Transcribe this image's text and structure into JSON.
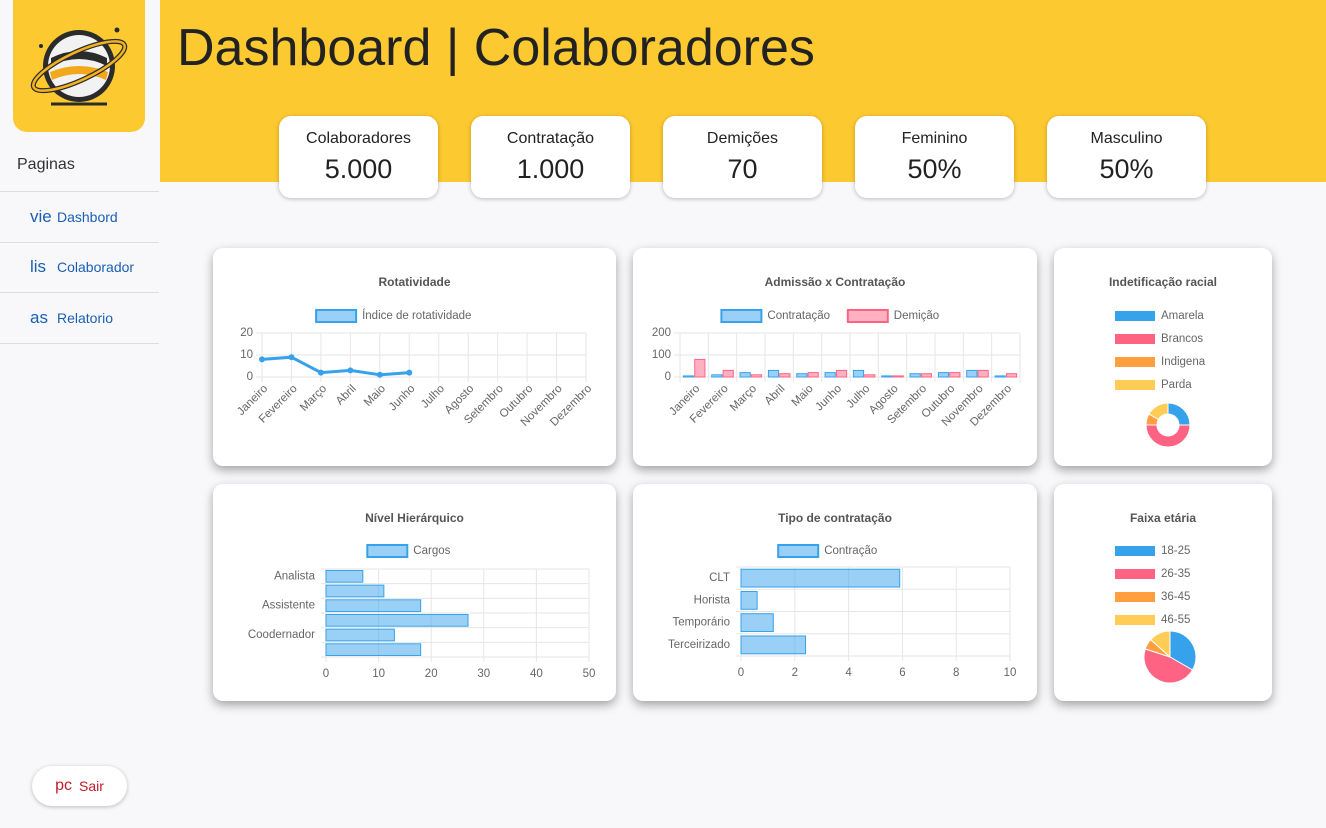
{
  "sidebar": {
    "section": "Paginas",
    "items": [
      {
        "icon": "vie",
        "label": "Dashbord"
      },
      {
        "icon": "lis",
        "label": "Colaborador"
      },
      {
        "icon": "as",
        "label": "Relatorio"
      }
    ],
    "logout": {
      "icon": "pc",
      "label": "Sair"
    }
  },
  "header": {
    "title": "Dashboard | Colaboradores"
  },
  "kpis": [
    {
      "label": "Colaboradores",
      "value": "5.000"
    },
    {
      "label": "Contratação",
      "value": "1.000"
    },
    {
      "label": "Demições",
      "value": "70"
    },
    {
      "label": "Feminino",
      "value": "50%"
    },
    {
      "label": "Masculino",
      "value": "50%"
    }
  ],
  "chart_data": [
    {
      "type": "line",
      "title": "Rotatividade",
      "categories": [
        "Janeiro",
        "Fevereiro",
        "Março",
        "Abril",
        "Maio",
        "Junho",
        "Julho",
        "Agosto",
        "Setembro",
        "Outubro",
        "Novembro",
        "Dezembro"
      ],
      "series": [
        {
          "name": "Índice de rotatividade",
          "color": "#36a2eb",
          "values": [
            8,
            9,
            2,
            3,
            1,
            2,
            null,
            null,
            null,
            null,
            null,
            null
          ]
        }
      ],
      "ylim": [
        0,
        20
      ],
      "yticks": [
        0,
        10,
        20
      ],
      "grid": true
    },
    {
      "type": "bar",
      "title": "Admissão x Contratação",
      "categories": [
        "Janeiro",
        "Fevereiro",
        "Março",
        "Abril",
        "Maio",
        "Junho",
        "Julho",
        "Agosto",
        "Setembro",
        "Outubro",
        "Novembro",
        "Dezembro"
      ],
      "series": [
        {
          "name": "Contratação",
          "color": "#36a2eb",
          "values": [
            5,
            10,
            20,
            30,
            15,
            20,
            30,
            5,
            15,
            20,
            30,
            5
          ]
        },
        {
          "name": "Demição",
          "color": "#ff6384",
          "values": [
            80,
            30,
            10,
            15,
            20,
            30,
            10,
            5,
            15,
            20,
            30,
            15
          ]
        }
      ],
      "ylim": [
        0,
        200
      ],
      "yticks": [
        0,
        100,
        200
      ],
      "grid": true
    },
    {
      "type": "doughnut",
      "title": "Indetificação racial",
      "categories": [
        "Amarela",
        "Brancos",
        "Indigena",
        "Parda"
      ],
      "values": [
        15,
        30,
        5,
        10
      ],
      "colors": [
        "#36a2eb",
        "#ff6384",
        "#ff9f40",
        "#ffcd56"
      ]
    },
    {
      "type": "hbar",
      "title": "Nível Hierárquico",
      "categories": [
        "Analista",
        null,
        "Assistente",
        null,
        "Coodernador",
        null
      ],
      "series": [
        {
          "name": "Cargos",
          "color": "#36a2eb",
          "values": [
            7,
            11,
            18,
            27,
            13,
            18
          ]
        }
      ],
      "xlim": [
        0,
        50
      ],
      "xticks": [
        0,
        10,
        20,
        30,
        40,
        50
      ],
      "grid": true
    },
    {
      "type": "hbar",
      "title": "Tipo de contratação",
      "categories": [
        "CLT",
        "Horista",
        "Temporário",
        "Terceirizado"
      ],
      "series": [
        {
          "name": "Contração",
          "color": "#36a2eb",
          "values": [
            5.9,
            0.6,
            1.2,
            2.4
          ]
        }
      ],
      "xlim": [
        0,
        10
      ],
      "xticks": [
        0,
        2,
        4,
        6,
        8,
        10
      ],
      "grid": true
    },
    {
      "type": "pie",
      "title": "Faixa etária",
      "categories": [
        "18-25",
        "26-35",
        "36-45",
        "46-55"
      ],
      "values": [
        25,
        35,
        5,
        10
      ],
      "colors": [
        "#36a2eb",
        "#ff6384",
        "#ff9f40",
        "#ffcd56"
      ]
    }
  ]
}
